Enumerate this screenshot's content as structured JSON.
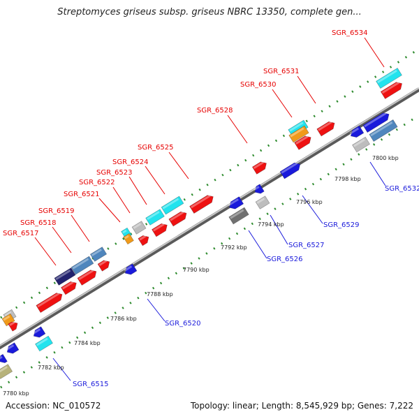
{
  "title": "Streptomyces griseus subsp. griseus NBRC 13350, complete gen...",
  "footer": {
    "accession": "Accession: NC_010572",
    "summary": "Topology: linear; Length: 8,545,929 bp; Genes: 7,222"
  },
  "colors": {
    "red": "#ee1111",
    "blue": "#1a1adb",
    "cyan": "#22e3ee",
    "steelblue": "#4f86bd",
    "gray": "#bdbdbd",
    "darkgray": "#707070",
    "orange": "#f09a1a",
    "olive": "#b7b27a",
    "navy": "#22226e",
    "axis": "#8a8a8a",
    "dots": "#2e8b2e"
  },
  "ticks": [
    "7780 kbp",
    "7782 kbp",
    "7784 kbp",
    "7786 kbp",
    "7788 kbp",
    "7790 kbp",
    "7792 kbp",
    "7794 kbp",
    "7796 kbp",
    "7798 kbp",
    "7800 kbp"
  ],
  "top_labels": [
    "SGR_6517",
    "SGR_6518",
    "SGR_6519",
    "SGR_6521",
    "SGR_6522",
    "SGR_6523",
    "SGR_6524",
    "SGR_6525",
    "SGR_6528",
    "SGR_6530",
    "SGR_6531",
    "SGR_6534"
  ],
  "bottom_labels": [
    "SGR_6515",
    "SGR_6520",
    "SGR_6526",
    "SGR_6527",
    "SGR_6529",
    "SGR_6532"
  ]
}
